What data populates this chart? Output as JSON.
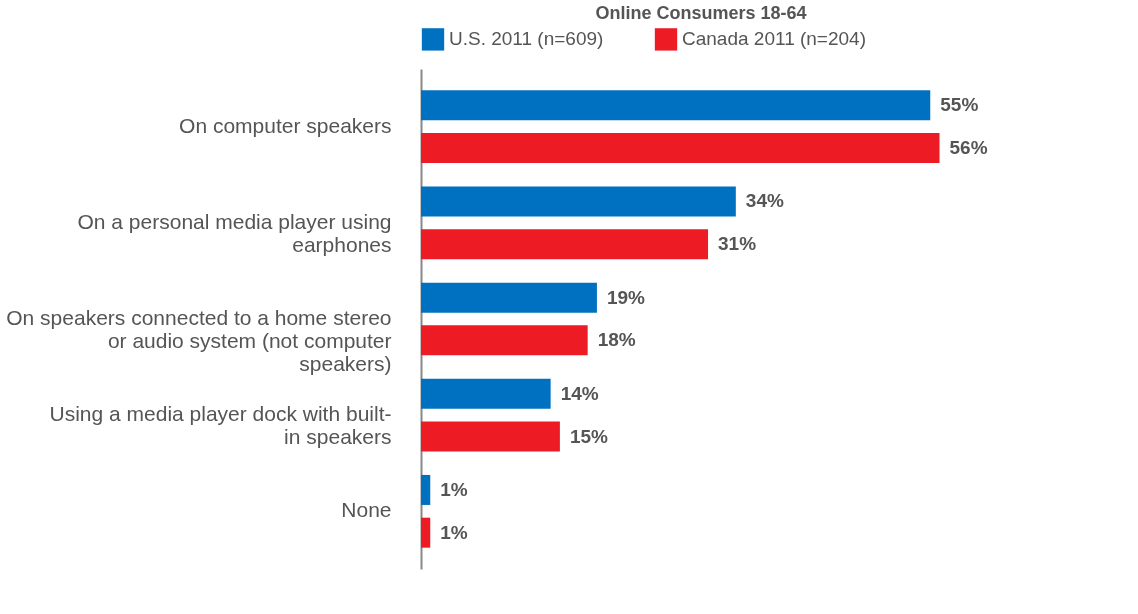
{
  "chart_data": {
    "type": "bar",
    "orientation": "horizontal",
    "title": "Online Consumers 18-64",
    "legend": "top",
    "categories": [
      "On computer speakers",
      "On a personal media player using earphones",
      "On speakers connected to a home stereo or audio system (not computer speakers)",
      "Using a media player dock with built-in speakers",
      "None"
    ],
    "series": [
      {
        "name": "U.S. 2011 (n=609)",
        "color": "#0070c0",
        "values": [
          55,
          34,
          19,
          14,
          1
        ],
        "value_labels": [
          "55%",
          "34%",
          "19%",
          "14%",
          "1%"
        ]
      },
      {
        "name": "Canada 2011 (n=204)",
        "color": "#ed1c24",
        "values": [
          56,
          31,
          18,
          15,
          1
        ],
        "value_labels": [
          "56%",
          "31%",
          "18%",
          "15%",
          "1%"
        ]
      }
    ]
  }
}
